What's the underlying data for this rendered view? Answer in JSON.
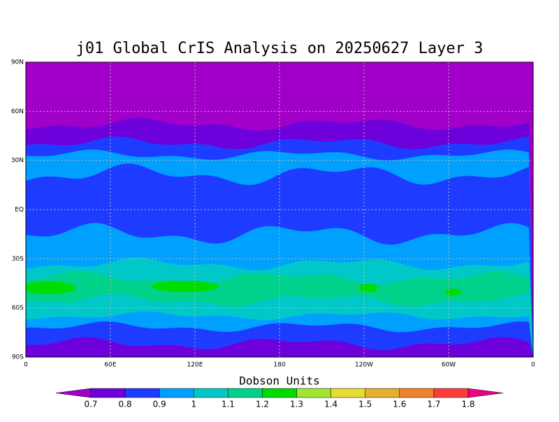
{
  "title": "j01 Global CrIS Analysis on 20250627 Layer 3",
  "lon_labels": [
    "0",
    "60E",
    "120E",
    "180",
    "120W",
    "60W",
    "0"
  ],
  "lat_labels": [
    "90N",
    "60N",
    "30N",
    "EQ",
    "30S",
    "60S",
    "90S"
  ],
  "colorbar": {
    "title": "Dobson Units",
    "labels": [
      "0.7",
      "0.8",
      "0.9",
      "1",
      "1.1",
      "1.2",
      "1.3",
      "1.4",
      "1.5",
      "1.6",
      "1.7",
      "1.8"
    ],
    "low_color": "#a000c8",
    "colors": [
      "#6e00dc",
      "#1e3cff",
      "#00a0ff",
      "#00c8c8",
      "#00d28c",
      "#00dc00",
      "#a0e632",
      "#e6dc32",
      "#e6af2d",
      "#f08228",
      "#fa3c3c"
    ],
    "high_color": "#f00082"
  }
}
